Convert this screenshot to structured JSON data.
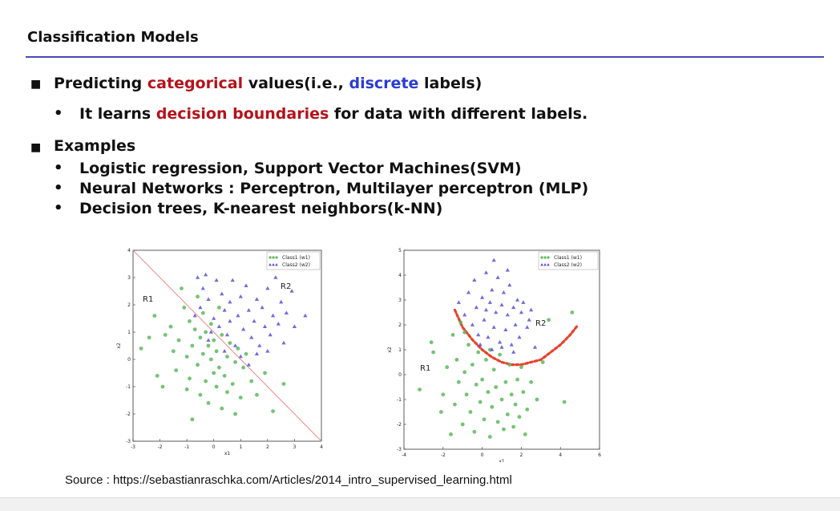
{
  "slide": {
    "title": "Classification Models",
    "bullet1": {
      "prefix": "Predicting ",
      "red": "categorical",
      "mid": " values(i.e., ",
      "blue": "discrete",
      "suffix": " labels)"
    },
    "sub1": {
      "prefix": "It learns ",
      "red": "decision boundaries",
      "suffix": " for data with different labels."
    },
    "bullet2": "Examples",
    "examples": [
      "Logistic regression, Support Vector Machines(SVM)",
      "Neural Networks : Perceptron, Multilayer perceptron (MLP)",
      "Decision trees, K-nearest neighbors(k-NN)"
    ],
    "source": "Source : https://sebastianraschka.com/Articles/2014_intro_supervised_learning.html"
  },
  "chart_data": [
    {
      "type": "scatter",
      "xlabel": "x1",
      "ylabel": "x2",
      "xlim": [
        -3,
        4
      ],
      "ylim": [
        -3,
        4
      ],
      "xticks": [
        -3,
        -2,
        -1,
        0,
        1,
        2,
        3,
        4
      ],
      "yticks": [
        -3,
        -2,
        -1,
        0,
        1,
        2,
        3,
        4
      ],
      "legend": [
        "Class1 (w1)",
        "Class2 (w2)"
      ],
      "legend_position": "top-right",
      "annotations": [
        "R1",
        "R2"
      ],
      "boundary": {
        "type": "line",
        "points": [
          [
            -3,
            4
          ],
          [
            4,
            -3
          ]
        ],
        "color": "#f08a8a"
      },
      "series": [
        {
          "name": "Class1 (w1)",
          "color": "#5cb85c",
          "marker": "circle",
          "points": [
            [
              -2.7,
              0.4
            ],
            [
              -2.2,
              1.6
            ],
            [
              -2.1,
              -0.6
            ],
            [
              -1.8,
              0.9
            ],
            [
              -1.6,
              1.2
            ],
            [
              -1.5,
              0.3
            ],
            [
              -1.4,
              -0.4
            ],
            [
              -1.3,
              0.7
            ],
            [
              -1.2,
              2.6
            ],
            [
              -1.1,
              1.9
            ],
            [
              -1.0,
              -1.1
            ],
            [
              -1.0,
              0.1
            ],
            [
              -0.9,
              1.4
            ],
            [
              -0.9,
              -0.7
            ],
            [
              -0.8,
              0.5
            ],
            [
              -0.8,
              -2.2
            ],
            [
              -0.7,
              1.1
            ],
            [
              -0.6,
              -0.2
            ],
            [
              -0.6,
              2.3
            ],
            [
              -0.5,
              0.8
            ],
            [
              -0.5,
              -1.3
            ],
            [
              -0.4,
              1.7
            ],
            [
              -0.4,
              0.2
            ],
            [
              -0.3,
              -0.8
            ],
            [
              -0.3,
              1.0
            ],
            [
              -0.2,
              0.5
            ],
            [
              -0.2,
              -1.6
            ],
            [
              -0.1,
              0.0
            ],
            [
              -0.1,
              1.3
            ],
            [
              0.0,
              -0.5
            ],
            [
              0.0,
              0.7
            ],
            [
              0.1,
              -1.0
            ],
            [
              0.1,
              0.3
            ],
            [
              0.2,
              -0.3
            ],
            [
              0.2,
              1.9
            ],
            [
              0.3,
              0.9
            ],
            [
              0.3,
              -1.8
            ],
            [
              0.4,
              -0.6
            ],
            [
              0.5,
              0.1
            ],
            [
              0.5,
              -1.2
            ],
            [
              0.6,
              0.6
            ],
            [
              0.7,
              -0.9
            ],
            [
              0.8,
              -0.1
            ],
            [
              0.8,
              -2.0
            ],
            [
              0.9,
              0.4
            ],
            [
              1.0,
              -1.4
            ],
            [
              1.1,
              -0.3
            ],
            [
              1.2,
              0.2
            ],
            [
              1.4,
              -0.8
            ],
            [
              1.6,
              -1.3
            ],
            [
              1.9,
              -0.5
            ],
            [
              2.2,
              -1.9
            ],
            [
              2.6,
              -0.9
            ],
            [
              -1.9,
              -1.0
            ],
            [
              -2.4,
              0.8
            ]
          ]
        },
        {
          "name": "Class2 (w2)",
          "color": "#5a4fd6",
          "marker": "triangle",
          "points": [
            [
              -0.6,
              3.0
            ],
            [
              -0.3,
              3.1
            ],
            [
              -0.4,
              2.6
            ],
            [
              -0.2,
              2.2
            ],
            [
              0.1,
              2.9
            ],
            [
              0.3,
              2.4
            ],
            [
              0.4,
              1.8
            ],
            [
              0.6,
              2.1
            ],
            [
              0.7,
              2.9
            ],
            [
              0.9,
              1.6
            ],
            [
              1.0,
              2.3
            ],
            [
              1.1,
              1.1
            ],
            [
              1.2,
              2.7
            ],
            [
              1.3,
              1.8
            ],
            [
              1.4,
              0.8
            ],
            [
              1.5,
              1.4
            ],
            [
              1.6,
              2.2
            ],
            [
              1.7,
              0.5
            ],
            [
              1.8,
              1.9
            ],
            [
              1.9,
              1.2
            ],
            [
              2.0,
              2.6
            ],
            [
              2.1,
              0.9
            ],
            [
              2.2,
              1.6
            ],
            [
              2.3,
              3.0
            ],
            [
              2.4,
              1.3
            ],
            [
              2.5,
              2.1
            ],
            [
              2.6,
              0.6
            ],
            [
              2.7,
              1.7
            ],
            [
              2.9,
              2.5
            ],
            [
              3.0,
              1.2
            ],
            [
              3.4,
              1.6
            ],
            [
              0.2,
              1.2
            ],
            [
              0.5,
              0.9
            ],
            [
              0.8,
              0.5
            ],
            [
              0.0,
              1.5
            ],
            [
              -0.2,
              0.7
            ],
            [
              0.4,
              0.3
            ],
            [
              1.0,
              0.1
            ],
            [
              1.3,
              -0.2
            ],
            [
              -0.5,
              1.9
            ],
            [
              -0.7,
              1.6
            ],
            [
              0.6,
              1.4
            ],
            [
              1.6,
              0.2
            ],
            [
              2.0,
              0.3
            ],
            [
              -0.1,
              1.0
            ]
          ]
        }
      ]
    },
    {
      "type": "scatter",
      "xlabel": "x1",
      "ylabel": "x2",
      "xlim": [
        -4,
        6
      ],
      "ylim": [
        -3,
        5
      ],
      "xticks": [
        -4,
        -2,
        0,
        2,
        4,
        6
      ],
      "yticks": [
        -3,
        -2,
        -1,
        0,
        1,
        2,
        3,
        4,
        5
      ],
      "legend": [
        "Class1 (w1)",
        "Class2 (w2)"
      ],
      "legend_position": "top-right",
      "annotations": [
        "R1",
        "R2"
      ],
      "boundary": {
        "type": "curve",
        "color": "#e8412b",
        "points": [
          [
            -1.4,
            2.6
          ],
          [
            -1.0,
            1.9
          ],
          [
            -0.5,
            1.4
          ],
          [
            0.0,
            1.0
          ],
          [
            0.5,
            0.7
          ],
          [
            1.0,
            0.5
          ],
          [
            1.5,
            0.4
          ],
          [
            2.0,
            0.4
          ],
          [
            2.5,
            0.5
          ],
          [
            3.0,
            0.6
          ],
          [
            3.5,
            0.9
          ],
          [
            4.0,
            1.2
          ],
          [
            4.5,
            1.6
          ],
          [
            4.9,
            2.0
          ]
        ]
      },
      "series": [
        {
          "name": "Class1 (w1)",
          "color": "#5cb85c",
          "marker": "circle",
          "points": [
            [
              -3.2,
              -0.6
            ],
            [
              -2.6,
              1.3
            ],
            [
              -2.5,
              0.9
            ],
            [
              -2.1,
              -1.5
            ],
            [
              -2.0,
              -0.8
            ],
            [
              -1.8,
              0.3
            ],
            [
              -1.6,
              -2.4
            ],
            [
              -1.5,
              1.6
            ],
            [
              -1.4,
              -1.2
            ],
            [
              -1.3,
              0.6
            ],
            [
              -1.2,
              -0.3
            ],
            [
              -1.1,
              2.1
            ],
            [
              -1.0,
              -2.0
            ],
            [
              -0.9,
              0.1
            ],
            [
              -0.8,
              -0.8
            ],
            [
              -0.7,
              1.2
            ],
            [
              -0.6,
              -1.5
            ],
            [
              -0.5,
              0.4
            ],
            [
              -0.4,
              -2.3
            ],
            [
              -0.3,
              -0.4
            ],
            [
              -0.2,
              0.9
            ],
            [
              -0.1,
              -1.1
            ],
            [
              0.0,
              -0.2
            ],
            [
              0.1,
              -1.8
            ],
            [
              0.2,
              0.6
            ],
            [
              0.3,
              -0.7
            ],
            [
              0.4,
              -2.5
            ],
            [
              0.5,
              -1.3
            ],
            [
              0.6,
              0.2
            ],
            [
              0.7,
              -0.5
            ],
            [
              0.8,
              -1.9
            ],
            [
              0.9,
              0.8
            ],
            [
              1.0,
              -1.0
            ],
            [
              1.1,
              -2.2
            ],
            [
              1.2,
              -0.3
            ],
            [
              1.3,
              -1.6
            ],
            [
              1.4,
              0.4
            ],
            [
              1.5,
              -0.8
            ],
            [
              1.6,
              -2.1
            ],
            [
              1.7,
              -1.2
            ],
            [
              1.8,
              -0.2
            ],
            [
              1.9,
              -1.7
            ],
            [
              2.0,
              0.3
            ],
            [
              2.1,
              -0.7
            ],
            [
              2.3,
              -1.4
            ],
            [
              2.5,
              -0.3
            ],
            [
              2.8,
              -1.0
            ],
            [
              3.1,
              0.5
            ],
            [
              3.4,
              2.2
            ],
            [
              4.2,
              -1.1
            ],
            [
              4.6,
              2.5
            ],
            [
              2.2,
              -2.4
            ],
            [
              -0.9,
              1.7
            ],
            [
              0.4,
              1.0
            ]
          ]
        },
        {
          "name": "Class2 (w2)",
          "color": "#5a4fd6",
          "marker": "triangle",
          "points": [
            [
              -1.2,
              2.9
            ],
            [
              -0.9,
              2.4
            ],
            [
              -0.7,
              3.3
            ],
            [
              -0.5,
              2.0
            ],
            [
              -0.4,
              3.8
            ],
            [
              -0.3,
              2.7
            ],
            [
              -0.2,
              1.6
            ],
            [
              0.0,
              3.1
            ],
            [
              0.1,
              2.2
            ],
            [
              0.2,
              4.1
            ],
            [
              0.3,
              1.5
            ],
            [
              0.4,
              2.9
            ],
            [
              0.5,
              3.4
            ],
            [
              0.6,
              1.9
            ],
            [
              0.7,
              2.5
            ],
            [
              0.8,
              3.9
            ],
            [
              0.9,
              1.3
            ],
            [
              1.0,
              2.8
            ],
            [
              1.1,
              3.3
            ],
            [
              1.2,
              1.8
            ],
            [
              1.3,
              2.4
            ],
            [
              1.4,
              3.6
            ],
            [
              1.5,
              1.2
            ],
            [
              1.6,
              2.7
            ],
            [
              1.7,
              2.0
            ],
            [
              1.8,
              3.0
            ],
            [
              1.9,
              1.5
            ],
            [
              2.0,
              2.5
            ],
            [
              2.1,
              2.9
            ],
            [
              2.3,
              1.9
            ],
            [
              2.5,
              2.6
            ],
            [
              2.7,
              1.1
            ],
            [
              0.6,
              4.6
            ],
            [
              1.3,
              4.2
            ],
            [
              2.4,
              2.2
            ],
            [
              1.0,
              1.1
            ],
            [
              -0.1,
              1.2
            ],
            [
              0.5,
              1.0
            ],
            [
              1.6,
              0.9
            ],
            [
              0.2,
              2.6
            ]
          ]
        }
      ]
    }
  ]
}
